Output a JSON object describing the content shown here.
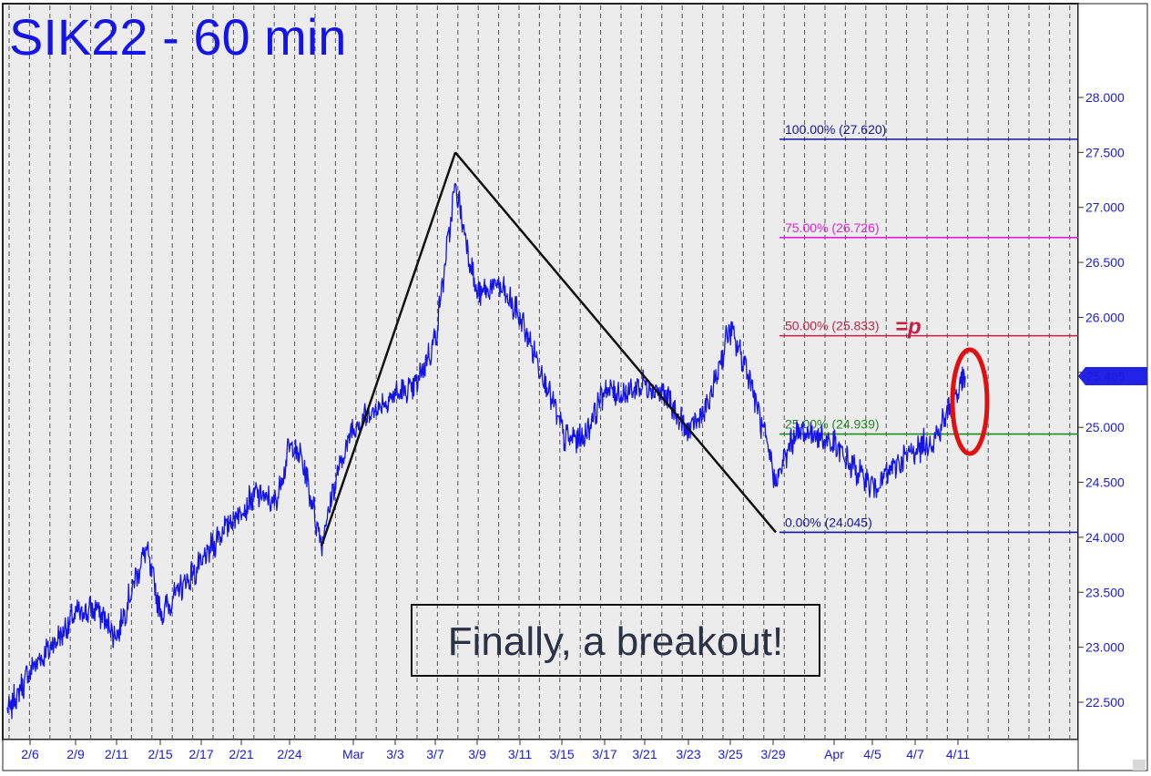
{
  "chart_data": {
    "type": "line",
    "title": "SIK22 - 60 min",
    "ylim": [
      22.15,
      28.6
    ],
    "y_ticks": [
      "28.000",
      "27.500",
      "27.000",
      "26.500",
      "26.000",
      "25.500",
      "25.000",
      "24.500",
      "24.000",
      "23.500",
      "23.000",
      "22.500"
    ],
    "y_tick_values": [
      28.0,
      27.5,
      27.0,
      26.5,
      26.0,
      25.5,
      25.0,
      24.5,
      24.0,
      23.5,
      23.0,
      22.5
    ],
    "x_ticks": [
      "2/6",
      "2/9",
      "2/11",
      "2/15",
      "2/17",
      "2/21",
      "2/24",
      "Mar",
      "3/3",
      "3/7",
      "3/9",
      "3/11",
      "3/15",
      "3/17",
      "3/21",
      "3/23",
      "3/25",
      "3/29",
      "Apr",
      "4/5",
      "4/7",
      "4/11"
    ],
    "grid": true,
    "last_price": "25.465",
    "last_price_value": 25.465,
    "series": [
      {
        "color": "#1414e6",
        "x": [
          "2/4",
          "2/6",
          "2/8",
          "2/9",
          "2/10",
          "2/11",
          "2/14",
          "2/15",
          "2/16",
          "2/17",
          "2/18",
          "2/21",
          "2/22",
          "2/23",
          "2/24",
          "2/25",
          "2/28",
          "3/1",
          "3/2",
          "3/3",
          "3/4",
          "3/7",
          "3/8",
          "3/9",
          "3/10",
          "3/11",
          "3/14",
          "3/15",
          "3/16",
          "3/17",
          "3/18",
          "3/21",
          "3/22",
          "3/23",
          "3/24",
          "3/25",
          "3/28",
          "3/29",
          "3/30",
          "3/31",
          "4/1",
          "4/4",
          "4/5",
          "4/6",
          "4/7",
          "4/8",
          "4/11",
          "4/12"
        ],
        "values": [
          22.4,
          22.8,
          23.1,
          23.3,
          23.35,
          23.1,
          23.9,
          23.3,
          23.55,
          23.75,
          24.05,
          24.25,
          24.4,
          24.3,
          24.85,
          24.7,
          23.95,
          24.5,
          25.0,
          25.3,
          25.35,
          25.8,
          27.2,
          26.2,
          26.3,
          26.0,
          25.4,
          24.9,
          24.9,
          25.35,
          25.3,
          25.4,
          25.3,
          24.95,
          25.2,
          25.9,
          25.5,
          24.5,
          24.95,
          24.95,
          24.85,
          24.65,
          24.45,
          24.65,
          24.8,
          24.9,
          25.3,
          25.465
        ]
      }
    ],
    "fib_levels": [
      {
        "label": "100.00% (27.620)",
        "value": 27.62,
        "color": "#1414a0"
      },
      {
        "label": "75.00% (26.726)",
        "value": 26.726,
        "color": "#e020e0"
      },
      {
        "label": "50.00% (25.833)",
        "value": 25.833,
        "color": "#c81e46"
      },
      {
        "label": "25.00% (24.939)",
        "value": 24.939,
        "color": "#1f8a1f"
      },
      {
        "label": "0.00% (24.045)",
        "value": 24.045,
        "color": "#1414a0"
      }
    ],
    "fib_marker": "=p",
    "pattern_points": [
      {
        "x": "2/28",
        "value": 23.92
      },
      {
        "x": "3/8",
        "value": 27.5
      },
      {
        "x": "3/29",
        "value": 24.045
      }
    ],
    "annotation": "Finally, a breakout!"
  },
  "colors": {
    "price_line": "#1414e6",
    "axis_text": "#1a1adb",
    "highlight_ellipse": "#e01010",
    "price_badge": "#2323e6"
  }
}
